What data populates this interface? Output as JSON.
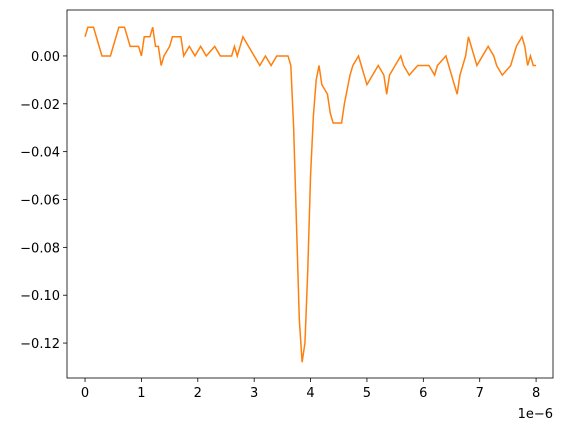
{
  "chart_data": {
    "type": "line",
    "x_offset_label": "1e−6",
    "xlim": [
      -0.32,
      8.3
    ],
    "ylim": [
      -0.1346,
      0.0192
    ],
    "xticks": [
      0,
      1,
      2,
      3,
      4,
      5,
      6,
      7,
      8
    ],
    "yticks": [
      {
        "value": 0,
        "label": "0.00"
      },
      {
        "value": -0.02,
        "label": "−0.02"
      },
      {
        "value": -0.04,
        "label": "−0.04"
      },
      {
        "value": -0.06,
        "label": "−0.06"
      },
      {
        "value": -0.08,
        "label": "−0.08"
      },
      {
        "value": -0.1,
        "label": "−0.10"
      },
      {
        "value": -0.12,
        "label": "−0.12"
      }
    ],
    "grid": false,
    "x": [
      0,
      0.05,
      0.15,
      0.2,
      0.25,
      0.3,
      0.45,
      0.5,
      0.55,
      0.6,
      0.7,
      0.75,
      0.8,
      0.95,
      1.0,
      1.05,
      1.15,
      1.2,
      1.25,
      1.3,
      1.35,
      1.4,
      1.5,
      1.55,
      1.7,
      1.75,
      1.85,
      1.95,
      2.05,
      2.15,
      2.3,
      2.4,
      2.6,
      2.65,
      2.7,
      2.8,
      2.9,
      3.0,
      3.1,
      3.2,
      3.3,
      3.4,
      3.6,
      3.65,
      3.7,
      3.75,
      3.8,
      3.85,
      3.9,
      3.95,
      4.0,
      4.05,
      4.1,
      4.15,
      4.2,
      4.3,
      4.35,
      4.4,
      4.55,
      4.6,
      4.7,
      4.75,
      4.85,
      4.9,
      4.95,
      5.0,
      5.1,
      5.2,
      5.3,
      5.35,
      5.4,
      5.5,
      5.6,
      5.65,
      5.75,
      5.9,
      6.1,
      6.2,
      6.25,
      6.4,
      6.5,
      6.6,
      6.65,
      6.75,
      6.8,
      6.85,
      6.95,
      7.05,
      7.15,
      7.25,
      7.3,
      7.4,
      7.55,
      7.65,
      7.75,
      7.8,
      7.85,
      7.9,
      7.95,
      8.0
    ],
    "series": [
      {
        "color": "#ff7f0e",
        "values": [
          0.008,
          0.012,
          0.012,
          0.008,
          0.004,
          0.0,
          0.0,
          0.004,
          0.008,
          0.012,
          0.012,
          0.008,
          0.004,
          0.004,
          0.0,
          0.008,
          0.008,
          0.012,
          0.004,
          0.004,
          -0.004,
          0.0,
          0.004,
          0.008,
          0.008,
          0.0,
          0.004,
          0.0,
          0.004,
          0.0,
          0.004,
          0.0,
          0.0,
          0.004,
          0.0,
          0.008,
          0.004,
          0.0,
          -0.004,
          0.0,
          -0.004,
          0.0,
          0.0,
          -0.004,
          -0.03,
          -0.07,
          -0.11,
          -0.128,
          -0.12,
          -0.09,
          -0.05,
          -0.025,
          -0.01,
          -0.004,
          -0.012,
          -0.016,
          -0.024,
          -0.028,
          -0.028,
          -0.02,
          -0.008,
          -0.004,
          0.0,
          -0.004,
          -0.008,
          -0.012,
          -0.008,
          -0.004,
          -0.008,
          -0.016,
          -0.008,
          -0.004,
          0.0,
          -0.004,
          -0.008,
          -0.004,
          -0.004,
          -0.008,
          -0.004,
          0.0,
          -0.008,
          -0.016,
          -0.008,
          0.0,
          0.008,
          0.004,
          -0.004,
          0.0,
          0.004,
          0.0,
          -0.004,
          -0.008,
          -0.004,
          0.004,
          0.008,
          0.004,
          -0.004,
          0.0,
          -0.004,
          -0.004
        ]
      }
    ]
  }
}
